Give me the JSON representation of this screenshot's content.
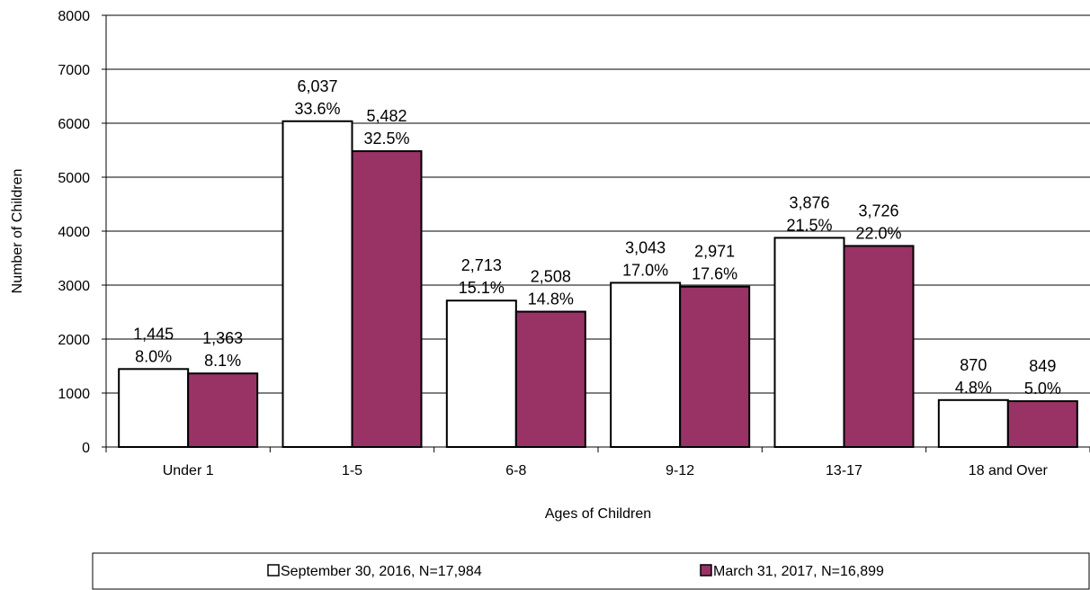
{
  "chart_data": {
    "type": "bar",
    "categories": [
      "Under 1",
      "1-5",
      "6-8",
      "9-12",
      "13-17",
      "18 and Over"
    ],
    "series": [
      {
        "name": "September 30, 2016, N=17,984",
        "color": "#ffffff",
        "values": [
          1445,
          6037,
          2713,
          3043,
          3876,
          870
        ],
        "value_labels": [
          "1,445",
          "6,037",
          "2,713",
          "3,043",
          "3,876",
          "870"
        ],
        "percent_labels": [
          "8.0%",
          "33.6%",
          "15.1%",
          "17.0%",
          "21.5%",
          "4.8%"
        ]
      },
      {
        "name": "March 31, 2017, N=16,899",
        "color": "#993366",
        "values": [
          1363,
          5482,
          2508,
          2971,
          3726,
          849
        ],
        "value_labels": [
          "1,363",
          "5,482",
          "2,508",
          "2,971",
          "3,726",
          "849"
        ],
        "percent_labels": [
          "8.1%",
          "32.5%",
          "14.8%",
          "17.6%",
          "22.0%",
          "5.0%"
        ]
      }
    ],
    "xlabel": "Ages of Children",
    "ylabel": "Number of Children",
    "ylim": [
      0,
      8000
    ],
    "yticks": [
      0,
      1000,
      2000,
      3000,
      4000,
      5000,
      6000,
      7000,
      8000
    ],
    "grid": true,
    "legend_position": "bottom"
  }
}
